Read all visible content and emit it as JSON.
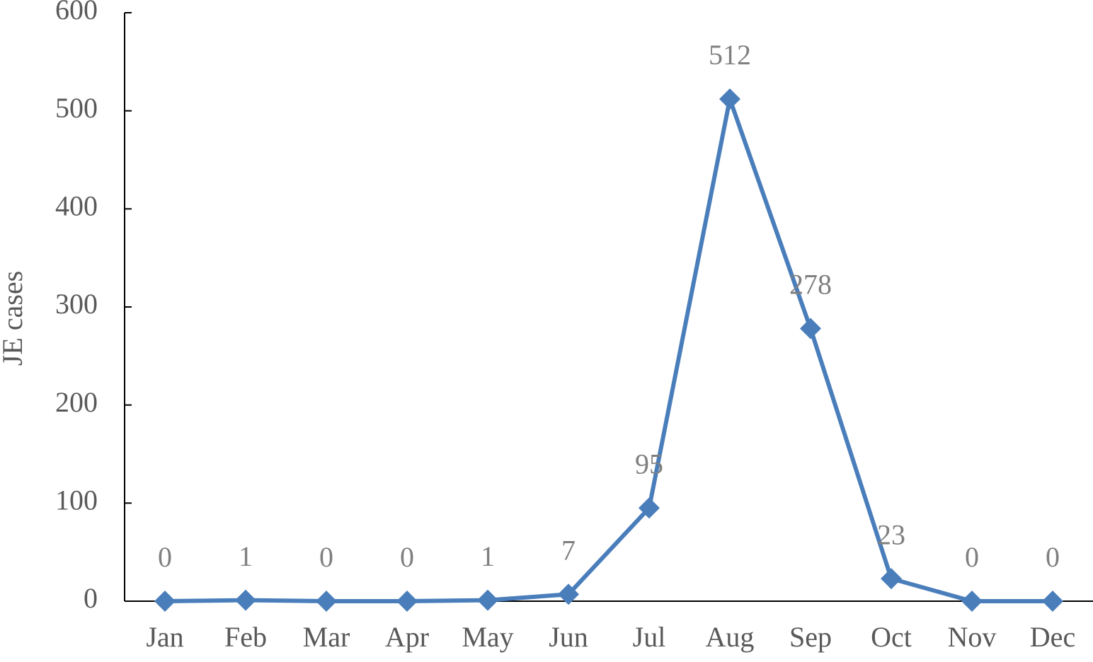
{
  "chart_data": {
    "type": "line",
    "y_label": "JE cases",
    "categories": [
      "Jan",
      "Feb",
      "Mar",
      "Apr",
      "May",
      "Jun",
      "Jul",
      "Aug",
      "Sep",
      "Oct",
      "Nov",
      "Dec"
    ],
    "values": [
      0,
      1,
      0,
      0,
      1,
      7,
      95,
      512,
      278,
      23,
      0,
      0
    ],
    "color": "#4a7ebb",
    "ylim": [
      0,
      600
    ],
    "yticks": [
      0,
      100,
      200,
      300,
      400,
      500,
      600
    ],
    "grid": false
  }
}
